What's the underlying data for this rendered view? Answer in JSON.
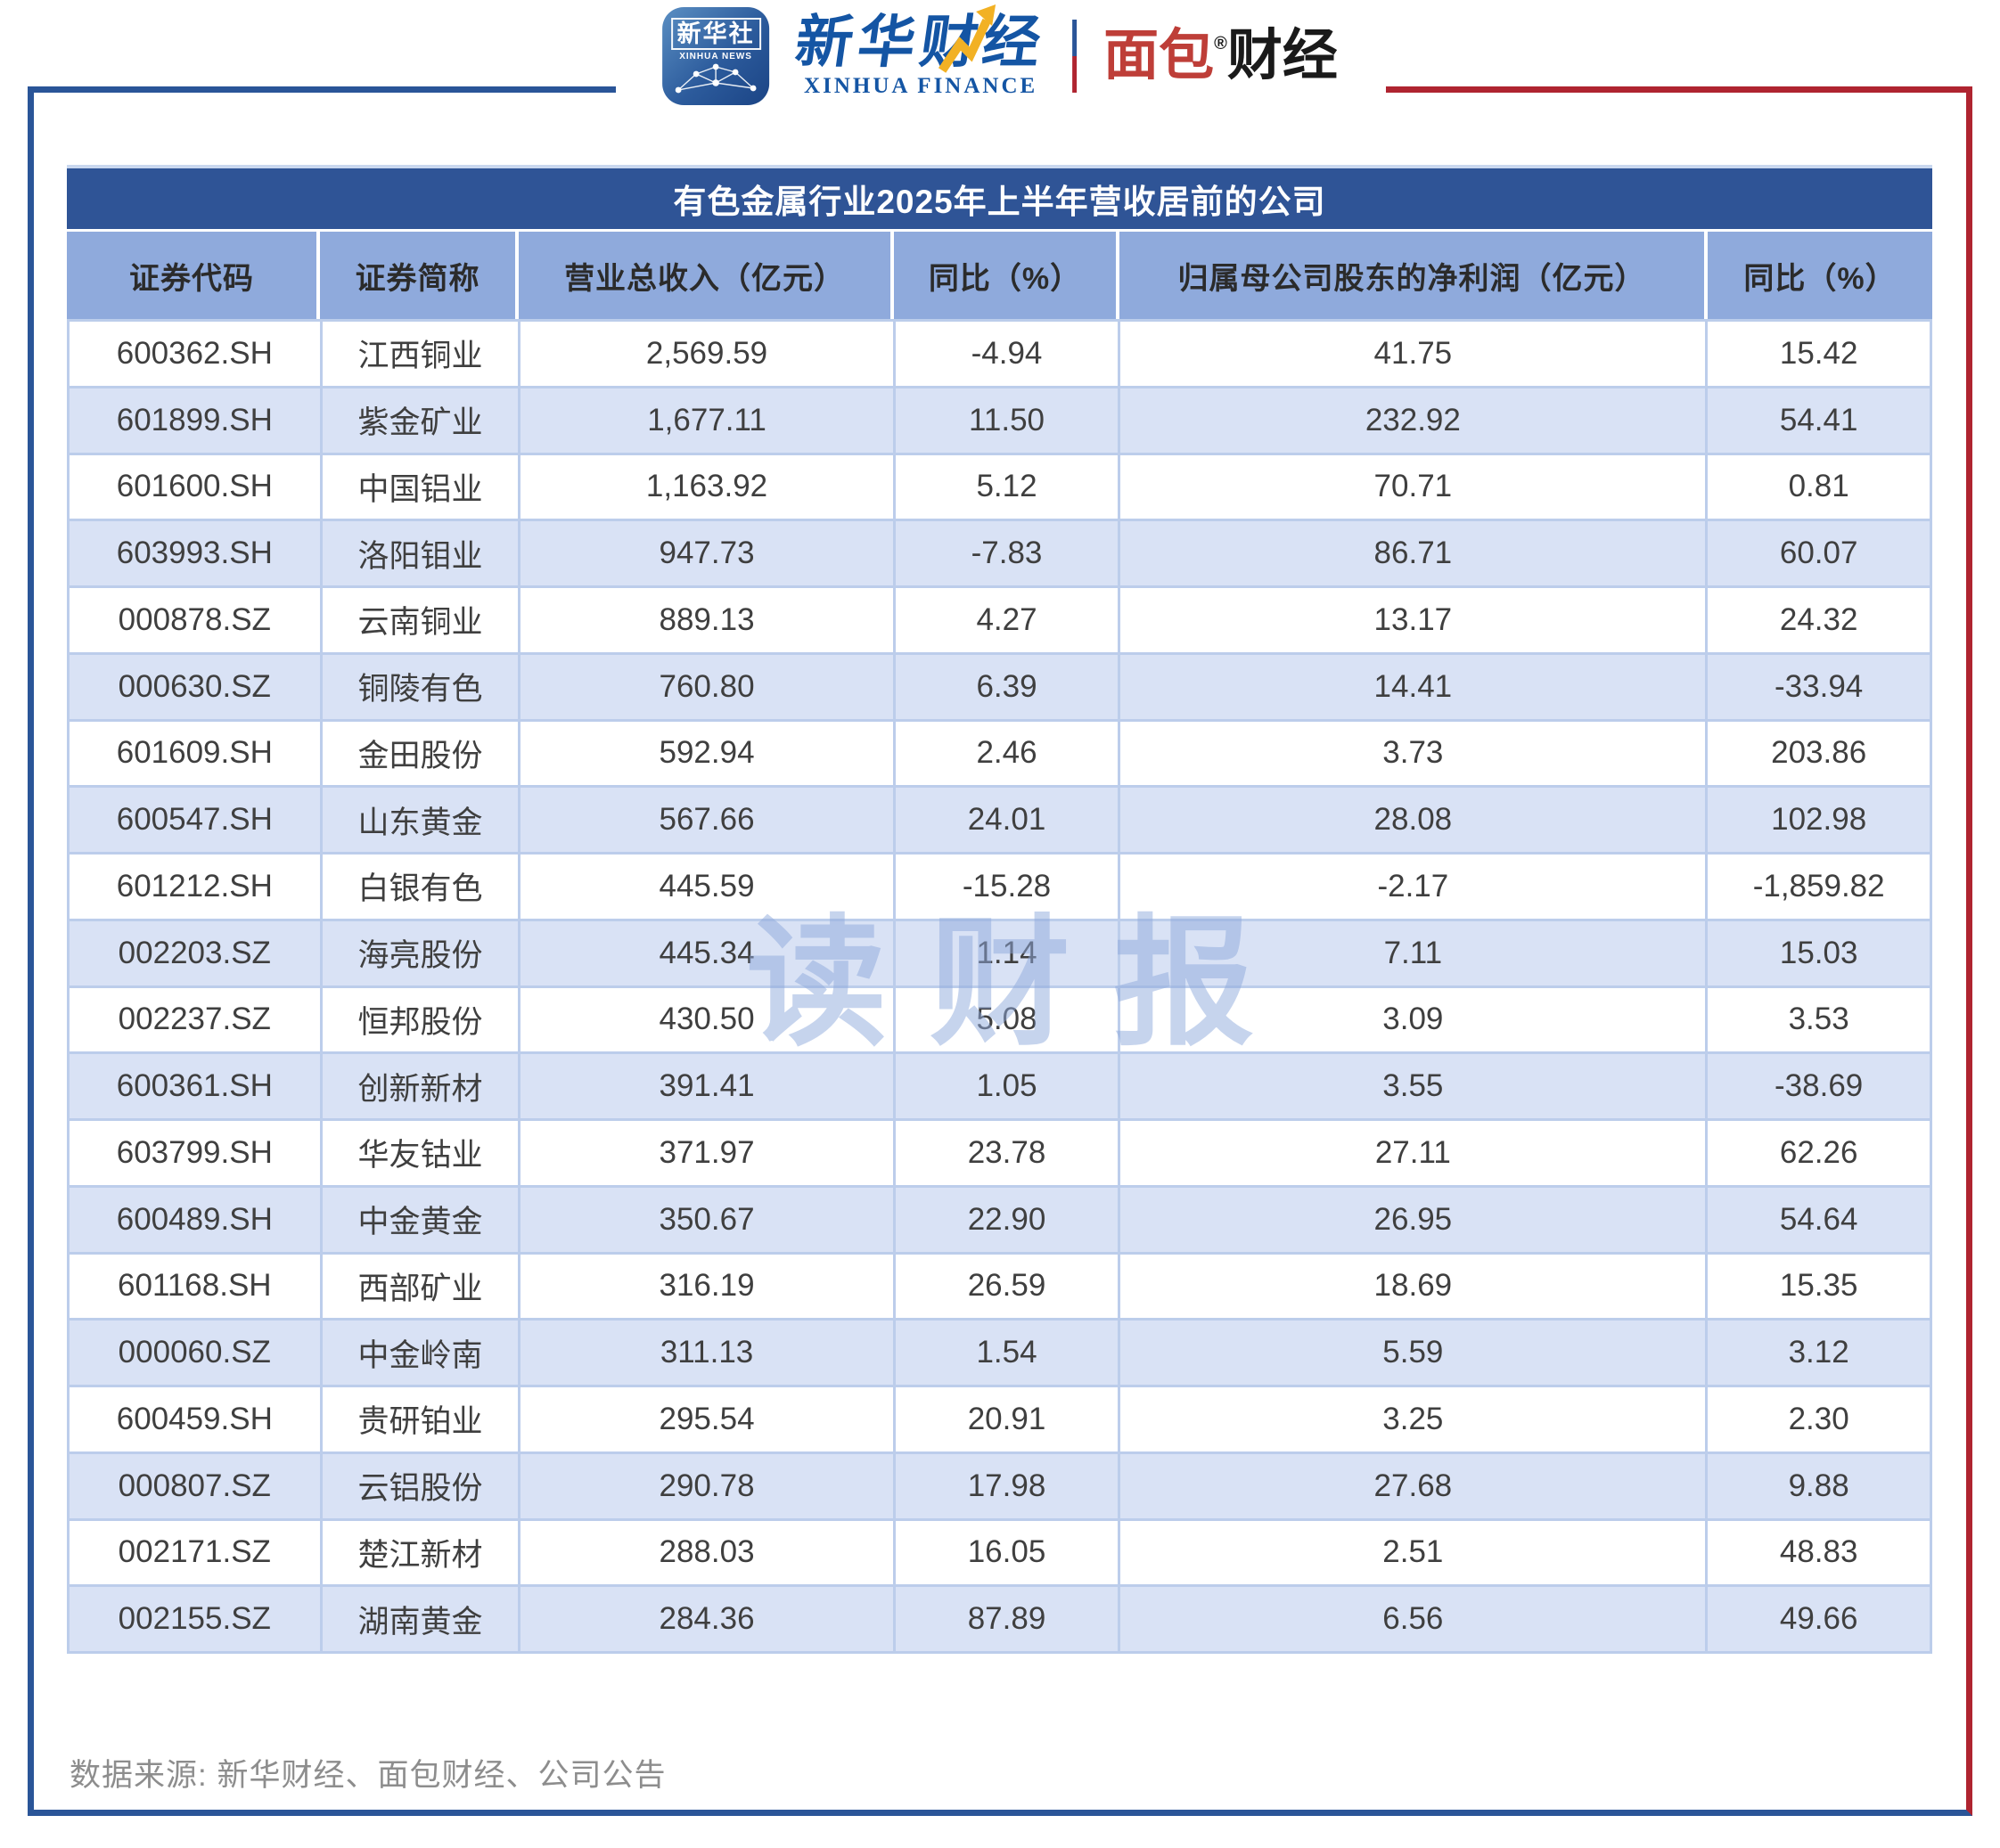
{
  "header": {
    "xinhua_news_icon": {
      "cn": "新华社",
      "en": "XINHUA NEWS"
    },
    "xinhua_finance_logo": {
      "cn": "新华财经",
      "en": "XINHUA FINANCE"
    },
    "bread_finance_logo": {
      "part_red": "面包",
      "reg_mark": "®",
      "part_black": "财经"
    },
    "colors": {
      "brand_blue": "#2A5598",
      "brand_red": "#AF2430"
    }
  },
  "chart_data": {
    "type": "table",
    "title": "有色金属行业2025年上半年营收居前的公司",
    "columns": [
      "证券代码",
      "证券简称",
      "营业总收入（亿元）",
      "同比（%）",
      "归属母公司股东的净利润（亿元）",
      "同比（%）"
    ],
    "rows": [
      [
        "600362.SH",
        "江西铜业",
        "2,569.59",
        "-4.94",
        "41.75",
        "15.42"
      ],
      [
        "601899.SH",
        "紫金矿业",
        "1,677.11",
        "11.50",
        "232.92",
        "54.41"
      ],
      [
        "601600.SH",
        "中国铝业",
        "1,163.92",
        "5.12",
        "70.71",
        "0.81"
      ],
      [
        "603993.SH",
        "洛阳钼业",
        "947.73",
        "-7.83",
        "86.71",
        "60.07"
      ],
      [
        "000878.SZ",
        "云南铜业",
        "889.13",
        "4.27",
        "13.17",
        "24.32"
      ],
      [
        "000630.SZ",
        "铜陵有色",
        "760.80",
        "6.39",
        "14.41",
        "-33.94"
      ],
      [
        "601609.SH",
        "金田股份",
        "592.94",
        "2.46",
        "3.73",
        "203.86"
      ],
      [
        "600547.SH",
        "山东黄金",
        "567.66",
        "24.01",
        "28.08",
        "102.98"
      ],
      [
        "601212.SH",
        "白银有色",
        "445.59",
        "-15.28",
        "-2.17",
        "-1,859.82"
      ],
      [
        "002203.SZ",
        "海亮股份",
        "445.34",
        "1.14",
        "7.11",
        "15.03"
      ],
      [
        "002237.SZ",
        "恒邦股份",
        "430.50",
        "5.08",
        "3.09",
        "3.53"
      ],
      [
        "600361.SH",
        "创新新材",
        "391.41",
        "1.05",
        "3.55",
        "-38.69"
      ],
      [
        "603799.SH",
        "华友钴业",
        "371.97",
        "23.78",
        "27.11",
        "62.26"
      ],
      [
        "600489.SH",
        "中金黄金",
        "350.67",
        "22.90",
        "26.95",
        "54.64"
      ],
      [
        "601168.SH",
        "西部矿业",
        "316.19",
        "26.59",
        "18.69",
        "15.35"
      ],
      [
        "000060.SZ",
        "中金岭南",
        "311.13",
        "1.54",
        "5.59",
        "3.12"
      ],
      [
        "600459.SH",
        "贵研铂业",
        "295.54",
        "20.91",
        "3.25",
        "2.30"
      ],
      [
        "000807.SZ",
        "云铝股份",
        "290.78",
        "17.98",
        "27.68",
        "9.88"
      ],
      [
        "002171.SZ",
        "楚江新材",
        "288.03",
        "16.05",
        "2.51",
        "48.83"
      ],
      [
        "002155.SZ",
        "湖南黄金",
        "284.36",
        "87.89",
        "6.56",
        "49.66"
      ]
    ],
    "source_note": "数据来源: 新华财经、面包财经、公司公告",
    "layout": {
      "title_bar_color": "#2F5496",
      "header_row_color": "#8FAADC",
      "alt_row_color": "#D9E2F5",
      "grid_color": "#BCCDEB"
    }
  },
  "watermark": "读财报"
}
